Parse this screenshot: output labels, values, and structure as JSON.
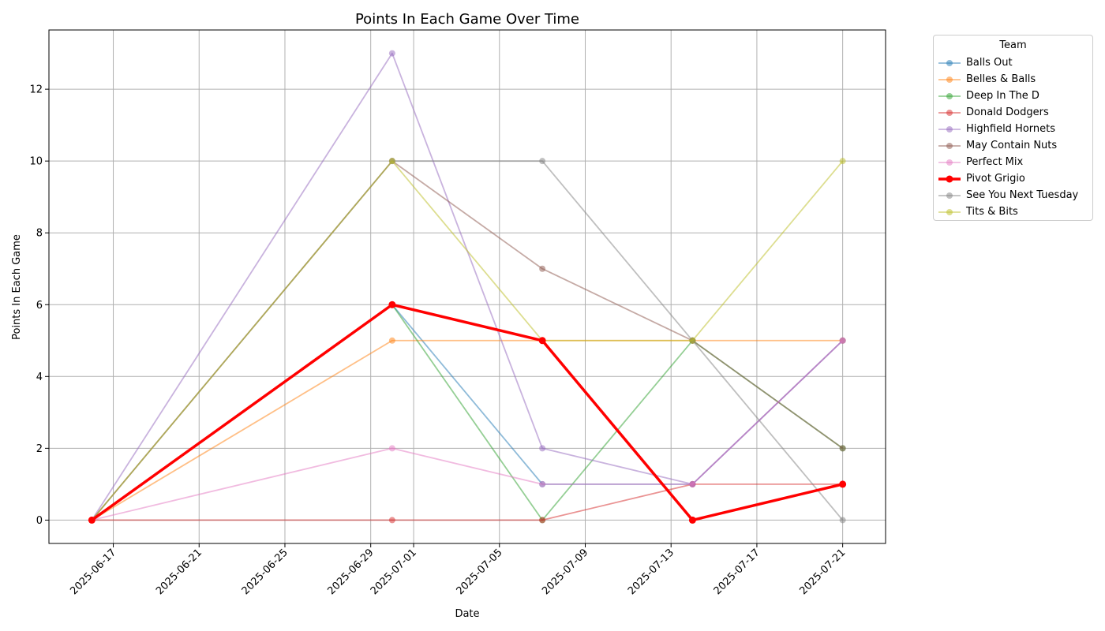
{
  "chart_data": {
    "type": "line",
    "title": "Points In Each Game Over Time",
    "xlabel": "Date",
    "ylabel": "Points In Each Game",
    "x_tick_labels": [
      "2025-06-17",
      "2025-06-21",
      "2025-06-25",
      "2025-06-29",
      "2025-07-01",
      "2025-07-05",
      "2025-07-09",
      "2025-07-13",
      "2025-07-17",
      "2025-07-21"
    ],
    "y_tick_labels": [
      "0",
      "2",
      "4",
      "6",
      "8",
      "10",
      "12"
    ],
    "xlim": [
      "2025-06-14T00:00",
      "2025-07-23T00:00"
    ],
    "ylim": [
      -0.65,
      13.65
    ],
    "grid": true,
    "legend_title": "Team",
    "legend_position": "outside-top-right",
    "x": [
      "2025-06-16",
      "2025-06-30",
      "2025-07-07",
      "2025-07-14",
      "2025-07-21"
    ],
    "series": [
      {
        "name": "Balls Out",
        "color": "#1f77b4",
        "values": [
          0,
          6,
          1,
          1,
          5
        ]
      },
      {
        "name": "Belles & Balls",
        "color": "#ff7f0e",
        "values": [
          0,
          5,
          5,
          5,
          5
        ]
      },
      {
        "name": "Deep In The D",
        "color": "#2ca02c",
        "values": [
          0,
          6,
          0,
          5,
          2
        ]
      },
      {
        "name": "Donald Dodgers",
        "color": "#d62728",
        "values": [
          0,
          0,
          0,
          1,
          1
        ]
      },
      {
        "name": "Highfield Hornets",
        "color": "#9467bd",
        "values": [
          0,
          13,
          2,
          1,
          5
        ]
      },
      {
        "name": "May Contain Nuts",
        "color": "#8c564b",
        "values": [
          0,
          10,
          7,
          5,
          2
        ]
      },
      {
        "name": "Perfect Mix",
        "color": "#e377c2",
        "values": [
          0,
          2,
          1,
          1,
          5
        ]
      },
      {
        "name": "Pivot Grigio",
        "color": "#ff0000",
        "values": [
          0,
          6,
          5,
          0,
          1
        ],
        "highlight": true
      },
      {
        "name": "See You Next Tuesday",
        "color": "#7f7f7f",
        "values": [
          0,
          10,
          10,
          5,
          0
        ]
      },
      {
        "name": "Tits & Bits",
        "color": "#bcbd22",
        "values": [
          0,
          10,
          5,
          5,
          10
        ]
      }
    ]
  }
}
